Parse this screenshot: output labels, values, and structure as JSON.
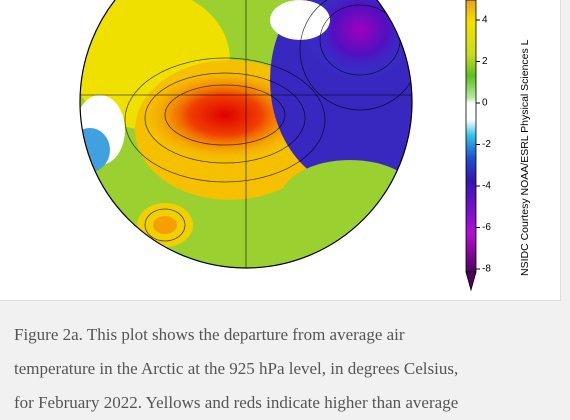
{
  "colorbar": {
    "ticks": [
      4,
      2,
      0,
      -2,
      -4,
      -6,
      -8
    ],
    "credit": "NSIDC Courtesy NOAA/ESRL Physical Sciences L"
  },
  "caption": {
    "lines": [
      "Figure 2a. This plot shows the departure from average air",
      "temperature in the Arctic at the 925 hPa level, in degrees Celsius,",
      "for February 2022. Yellows and reds indicate higher than average"
    ]
  }
}
